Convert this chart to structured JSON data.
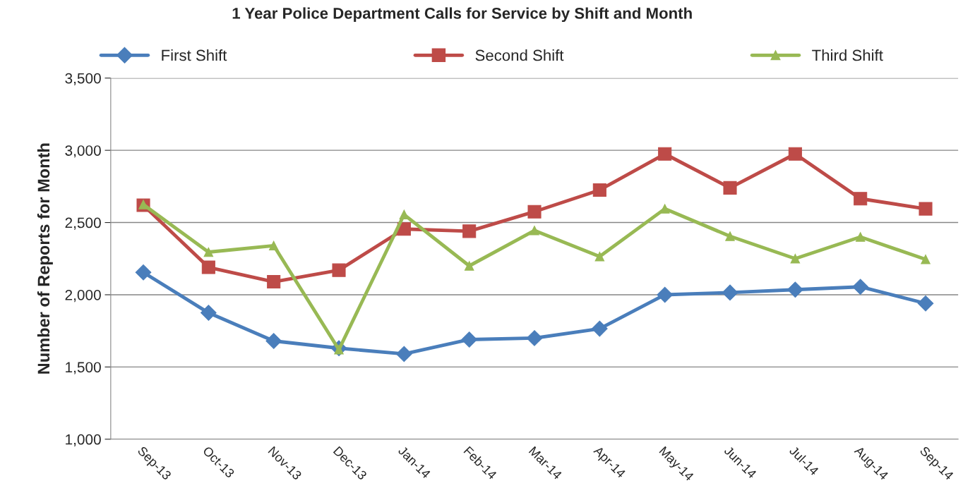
{
  "chart_data": {
    "type": "line",
    "title": "1 Year Police Department Calls for Service by Shift and Month",
    "ylabel": "Number of Reports for Month",
    "categories": [
      "Sep-13",
      "Oct-13",
      "Nov-13",
      "Dec-13",
      "Jan-14",
      "Feb-14",
      "Mar-14",
      "Apr-14",
      "May-14",
      "Jun-14",
      "Jul-14",
      "Aug-14",
      "Sep-14"
    ],
    "series": [
      {
        "name": "First Shift",
        "color": "#4a7ebb",
        "marker": "diamond",
        "values": [
          2155,
          1875,
          1680,
          1630,
          1590,
          1690,
          1700,
          1765,
          2000,
          2015,
          2035,
          2055,
          1940
        ]
      },
      {
        "name": "Second Shift",
        "color": "#be4b48",
        "marker": "square",
        "values": [
          2620,
          2190,
          2090,
          2170,
          2455,
          2440,
          2575,
          2725,
          2975,
          2740,
          2975,
          2665,
          2595
        ]
      },
      {
        "name": "Third Shift",
        "color": "#98b954",
        "marker": "triangle",
        "values": [
          2625,
          2295,
          2340,
          1620,
          2555,
          2200,
          2445,
          2265,
          2595,
          2405,
          2250,
          2400,
          2245
        ]
      }
    ],
    "ylim": [
      1000,
      3500
    ],
    "yticks": [
      {
        "value": 1000,
        "label": "1,000"
      },
      {
        "value": 1500,
        "label": "1,500"
      },
      {
        "value": 2000,
        "label": "2,000"
      },
      {
        "value": 2500,
        "label": "2,500"
      },
      {
        "value": 3000,
        "label": "3,000"
      },
      {
        "value": 3500,
        "label": "3,500"
      }
    ],
    "grid": "y",
    "legend": "top",
    "line_style": "solid"
  }
}
